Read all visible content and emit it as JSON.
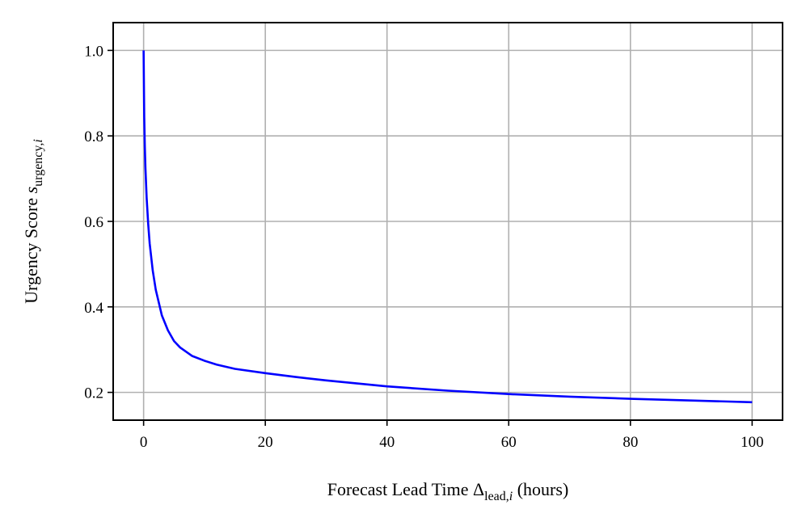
{
  "chart_data": {
    "type": "line",
    "xlabel": {
      "prefix": "Forecast Lead Time ",
      "symbol": "Δ",
      "subscript": "lead,",
      "subscript_index": "i",
      "suffix": " (hours)"
    },
    "ylabel": {
      "prefix": "Urgency Score ",
      "symbol": "s",
      "subscript": "urgency,",
      "subscript_index": "i"
    },
    "xlim": [
      -5,
      105
    ],
    "ylim": [
      0.135,
      1.065
    ],
    "xticks": [
      0,
      20,
      40,
      60,
      80,
      100
    ],
    "xtick_labels": [
      "0",
      "20",
      "40",
      "60",
      "80",
      "100"
    ],
    "yticks": [
      0.2,
      0.4,
      0.6,
      0.8,
      1.0
    ],
    "ytick_labels": [
      "0.2",
      "0.4",
      "0.6",
      "0.8",
      "1.0"
    ],
    "grid": true,
    "series": [
      {
        "color": "#0000ff",
        "x": [
          0,
          0.1,
          0.2,
          0.3,
          0.5,
          0.75,
          1,
          1.5,
          2,
          3,
          4,
          5,
          6,
          8,
          10,
          12,
          15,
          20,
          25,
          30,
          40,
          50,
          60,
          70,
          80,
          90,
          100
        ],
        "y": [
          1.0,
          0.845,
          0.775,
          0.725,
          0.655,
          0.595,
          0.548,
          0.485,
          0.44,
          0.38,
          0.345,
          0.32,
          0.305,
          0.285,
          0.274,
          0.265,
          0.255,
          0.245,
          0.236,
          0.228,
          0.214,
          0.204,
          0.196,
          0.19,
          0.185,
          0.181,
          0.177
        ]
      }
    ]
  }
}
